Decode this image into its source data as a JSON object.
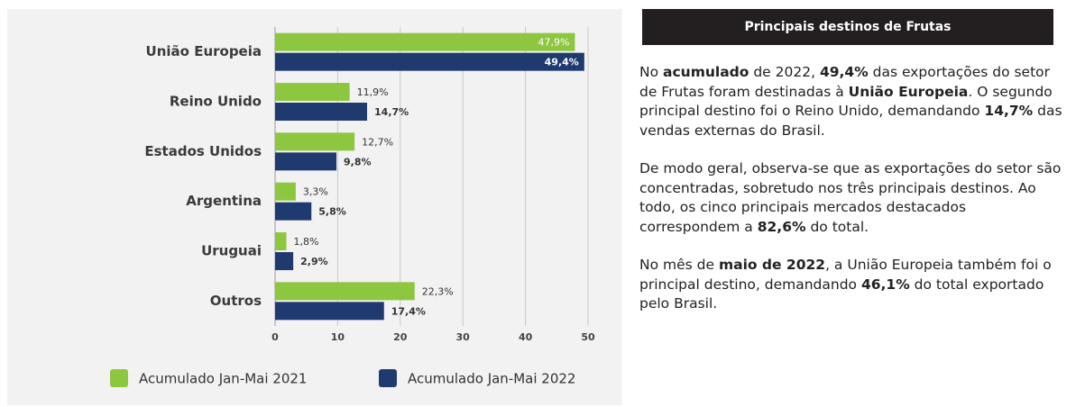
{
  "chart_data": {
    "type": "bar",
    "orientation": "horizontal",
    "categories": [
      "União Europeia",
      "Reino Unido",
      "Estados Unidos",
      "Argentina",
      "Uruguai",
      "Outros"
    ],
    "series": [
      {
        "name": "Acumulado Jan-Mai 2021",
        "color": "#8dc63f",
        "values": [
          47.9,
          11.9,
          12.7,
          3.3,
          1.8,
          22.3
        ],
        "value_labels": [
          "47,9%",
          "11,9%",
          "12,7%",
          "3,3%",
          "1,8%",
          "22,3%"
        ]
      },
      {
        "name": "Acumulado Jan-Mai 2022",
        "color": "#1f3a6e",
        "values": [
          49.4,
          14.7,
          9.8,
          5.8,
          2.9,
          17.4
        ],
        "value_labels": [
          "49,4%",
          "14,7%",
          "9,8%",
          "5,8%",
          "2,9%",
          "17,4%"
        ]
      }
    ],
    "xlim": [
      0,
      50
    ],
    "xticks": [
      0,
      10,
      20,
      30,
      40,
      50
    ],
    "grid": true,
    "legend": "bottom"
  },
  "panel": {
    "title": "Principais destinos de Frutas",
    "paragraphs": [
      [
        {
          "text": "No "
        },
        {
          "text": "acumulado",
          "bold": true
        },
        {
          "text": " de 2022, "
        },
        {
          "text": "49,4%",
          "bold": true
        },
        {
          "text": " das exportações do setor de Frutas foram destinadas à "
        },
        {
          "text": "União Europeia",
          "bold": true
        },
        {
          "text": ". O segundo principal destino foi o Reino Unido, demandando "
        },
        {
          "text": "14,7%",
          "bold": true
        },
        {
          "text": " das vendas externas do Brasil."
        }
      ],
      [
        {
          "text": "De modo geral, observa-se que as exportações do setor são concentradas, sobretudo nos três principais destinos. Ao todo, os cinco principais mercados destacados correspondem a "
        },
        {
          "text": "82,6%",
          "bold": true
        },
        {
          "text": " do total."
        }
      ],
      [
        {
          "text": "No mês de "
        },
        {
          "text": "maio de 2022",
          "bold": true
        },
        {
          "text": ", a União Europeia também foi o principal destino, demandando "
        },
        {
          "text": "46,1%",
          "bold": true
        },
        {
          "text": " do total exportado pelo Brasil."
        }
      ]
    ]
  }
}
